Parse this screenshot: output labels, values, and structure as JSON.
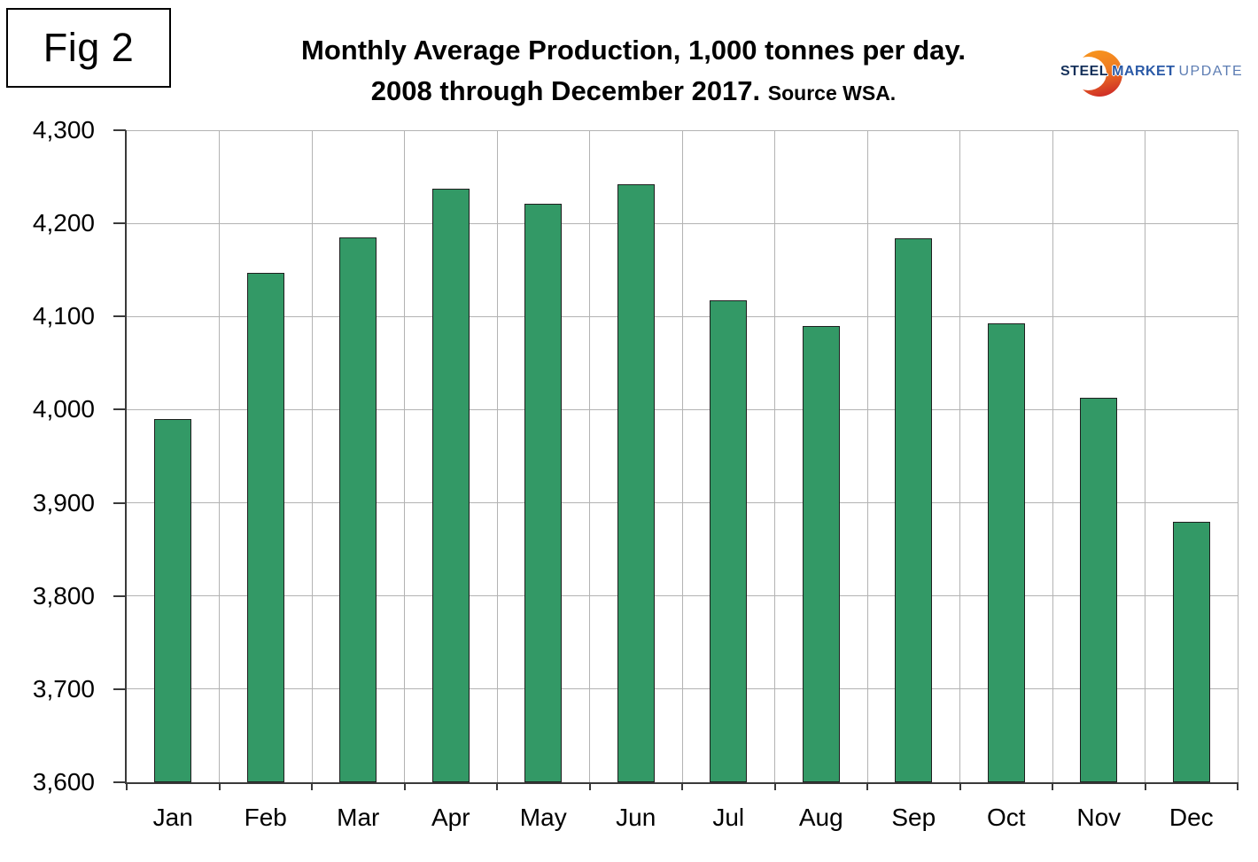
{
  "figure": {
    "label": "Fig 2"
  },
  "title": {
    "line1": "Monthly Average Production, 1,000 tonnes per day.",
    "line2": "2008 through December 2017.",
    "source": "Source WSA."
  },
  "logo": {
    "word1": "STEEL",
    "word2": "MARKET",
    "word3": "UPDATE",
    "crescent_top_color": "#F7941E",
    "crescent_bottom_color": "#CE2B26",
    "word1_color": "#14305A",
    "word2_color": "#2B5AA7",
    "word3_color": "#5D7DB3"
  },
  "chart_data": {
    "type": "bar",
    "title": "Monthly Average Production, 1,000 tonnes per day. 2008 through December 2017. Source WSA.",
    "categories": [
      "Jan",
      "Feb",
      "Mar",
      "Apr",
      "May",
      "Jun",
      "Jul",
      "Aug",
      "Sep",
      "Oct",
      "Nov",
      "Dec"
    ],
    "values": [
      3990,
      4147,
      4185,
      4237,
      4221,
      4242,
      4117,
      4090,
      4184,
      4093,
      4013,
      3880
    ],
    "xlabel": "",
    "ylabel": "",
    "ylim": [
      3600,
      4300
    ],
    "ytick_step": 100,
    "ytick_labels": [
      "3,600",
      "3,700",
      "3,800",
      "3,900",
      "4,000",
      "4,100",
      "4,200",
      "4,300"
    ],
    "grid": "both",
    "legend": "none",
    "colors": {
      "bar_fill": "#339966",
      "bar_border": "#1F1F1F",
      "gridline": "#B3B3B3",
      "axis": "#3A3A3A",
      "label_text": "#000000"
    }
  }
}
